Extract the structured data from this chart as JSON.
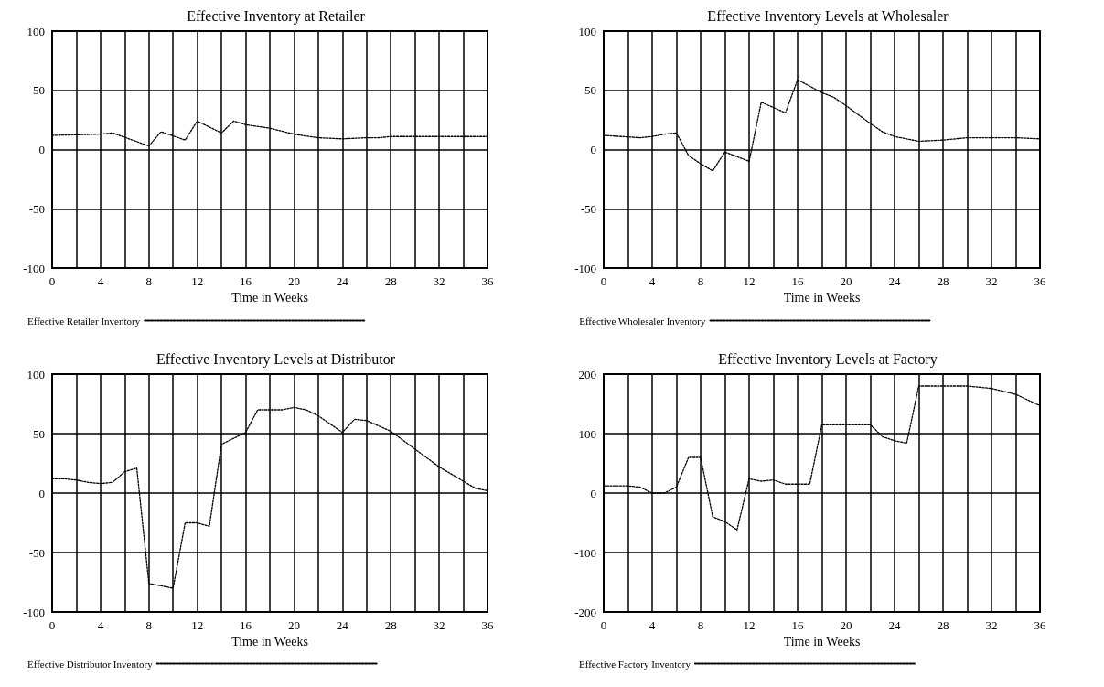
{
  "chart_data": [
    {
      "type": "line",
      "title": "Effective Inventory at Retailer",
      "xlabel": "Time in Weeks",
      "xlim": [
        0,
        36
      ],
      "xticks": [
        0,
        {
          "value": 2,
          "label": null
        },
        4,
        {
          "value": 6,
          "label": null
        },
        8,
        {
          "value": 10,
          "label": null
        },
        12,
        {
          "value": 14,
          "label": null
        },
        16,
        {
          "value": 18,
          "label": null
        },
        20,
        {
          "value": 22,
          "label": null
        },
        24,
        {
          "value": 26,
          "label": null
        },
        28,
        {
          "value": 30,
          "label": null
        },
        32,
        {
          "value": 34,
          "label": null
        },
        36
      ],
      "ylim": [
        -100,
        100
      ],
      "yticks": [
        -100,
        -50,
        0,
        50,
        100
      ],
      "grid": true,
      "legend": "bottom",
      "line_style": "dotted",
      "marker": "none",
      "series": [
        {
          "name": "Effective Retailer Inventory",
          "color": "#000000",
          "x": [
            0,
            4,
            5,
            8,
            9,
            11,
            12,
            14,
            15,
            16,
            18,
            20,
            22,
            24,
            26,
            27,
            28,
            30,
            31,
            36
          ],
          "values": [
            12,
            13,
            14,
            3,
            15,
            8,
            24,
            14,
            24,
            21,
            18,
            13,
            10,
            9,
            10,
            10,
            11,
            11,
            11,
            11
          ]
        }
      ]
    },
    {
      "type": "line",
      "title": "Effective Inventory Levels at Wholesaler",
      "xlabel": "Time in Weeks",
      "xlim": [
        0,
        36
      ],
      "xticks": [
        0,
        {
          "value": 2,
          "label": null
        },
        4,
        {
          "value": 6,
          "label": null
        },
        8,
        {
          "value": 10,
          "label": null
        },
        12,
        {
          "value": 14,
          "label": null
        },
        16,
        {
          "value": 18,
          "label": null
        },
        20,
        {
          "value": 22,
          "label": null
        },
        24,
        {
          "value": 26,
          "label": null
        },
        28,
        {
          "value": 30,
          "label": null
        },
        32,
        {
          "value": 34,
          "label": null
        },
        36
      ],
      "ylim": [
        -100,
        100
      ],
      "yticks": [
        -100,
        -50,
        0,
        50,
        100
      ],
      "grid": true,
      "legend": "bottom",
      "line_style": "dotted",
      "marker": "none",
      "series": [
        {
          "name": "Effective Wholesaler Inventory",
          "color": "#000000",
          "x": [
            0,
            3,
            4,
            5,
            6,
            7,
            8,
            9,
            10,
            12,
            13,
            15,
            16,
            18,
            19,
            20,
            22,
            23,
            24,
            26,
            28,
            30,
            32,
            34,
            36
          ],
          "values": [
            12,
            10,
            11,
            13,
            14,
            -5,
            -12,
            -18,
            -2,
            -10,
            40,
            31,
            59,
            48,
            44,
            37,
            22,
            15,
            11,
            7,
            8,
            10,
            10,
            10,
            9
          ]
        }
      ]
    },
    {
      "type": "line",
      "title": "Effective Inventory Levels at Distributor",
      "xlabel": "Time in Weeks",
      "xlim": [
        0,
        36
      ],
      "xticks": [
        0,
        {
          "value": 2,
          "label": null
        },
        4,
        {
          "value": 6,
          "label": null
        },
        8,
        {
          "value": 10,
          "label": null
        },
        12,
        {
          "value": 14,
          "label": null
        },
        16,
        {
          "value": 18,
          "label": null
        },
        20,
        {
          "value": 22,
          "label": null
        },
        24,
        {
          "value": 26,
          "label": null
        },
        28,
        {
          "value": 30,
          "label": null
        },
        32,
        {
          "value": 34,
          "label": null
        },
        36
      ],
      "ylim": [
        -100,
        100
      ],
      "yticks": [
        -100,
        -50,
        0,
        50,
        100
      ],
      "grid": true,
      "legend": "bottom",
      "line_style": "dotted",
      "marker": "none",
      "series": [
        {
          "name": "Effective Distributor Inventory",
          "color": "#000000",
          "x": [
            0,
            1,
            2,
            3,
            4,
            5,
            6,
            7,
            8,
            10,
            11,
            12,
            13,
            14,
            16,
            17,
            19,
            20,
            21,
            22,
            24,
            25,
            26,
            28,
            30,
            32,
            34,
            35,
            36
          ],
          "values": [
            12,
            12,
            11,
            9,
            8,
            9,
            18,
            21,
            -76,
            -80,
            -25,
            -25,
            -28,
            41,
            51,
            70,
            70,
            72,
            70,
            65,
            51,
            62,
            61,
            52,
            37,
            22,
            10,
            4,
            2
          ]
        }
      ]
    },
    {
      "type": "line",
      "title": "Effective Inventory Levels at Factory",
      "xlabel": "Time in Weeks",
      "xlim": [
        0,
        36
      ],
      "xticks": [
        0,
        {
          "value": 2,
          "label": null
        },
        4,
        {
          "value": 6,
          "label": null
        },
        8,
        {
          "value": 10,
          "label": null
        },
        12,
        {
          "value": 14,
          "label": null
        },
        16,
        {
          "value": 18,
          "label": null
        },
        20,
        {
          "value": 22,
          "label": null
        },
        24,
        {
          "value": 26,
          "label": null
        },
        28,
        {
          "value": 30,
          "label": null
        },
        32,
        {
          "value": 34,
          "label": null
        },
        36
      ],
      "ylim": [
        -200,
        200
      ],
      "yticks": [
        -200,
        -100,
        0,
        100,
        200
      ],
      "grid": true,
      "legend": "bottom",
      "line_style": "dotted",
      "marker": "none",
      "series": [
        {
          "name": "Effective Factory Inventory",
          "color": "#000000",
          "x": [
            0,
            2,
            3,
            4,
            5,
            6,
            7,
            8,
            9,
            10,
            11,
            12,
            13,
            14,
            15,
            17,
            18,
            22,
            23,
            24,
            25,
            26,
            30,
            32,
            34,
            36
          ],
          "values": [
            12,
            12,
            10,
            0,
            0,
            10,
            60,
            60,
            -40,
            -48,
            -62,
            24,
            20,
            22,
            15,
            15,
            115,
            115,
            95,
            88,
            84,
            180,
            180,
            176,
            166,
            147
          ]
        }
      ]
    }
  ]
}
